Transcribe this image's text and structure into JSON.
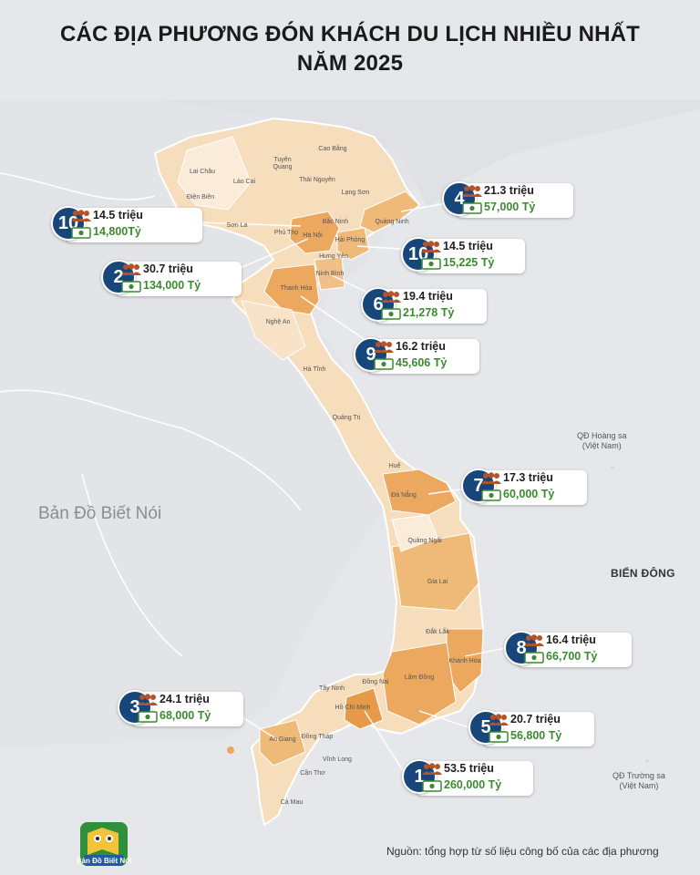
{
  "title": {
    "line1": "CÁC ĐỊA PHƯƠNG ĐÓN KHÁCH DU LỊCH NHIỀU NHẤT",
    "line2": "NĂM 2025"
  },
  "map_labels": {
    "watermark": "Bản Đồ Biết Nói",
    "hoang_sa": "QĐ Hoàng sa\n(Việt Nam)",
    "truong_sa": "QĐ Trường sa\n(Việt Nam)",
    "bien_dong": "BIỂN ĐÔNG",
    "source": "Nguồn: tổng hợp từ số liệu công bố của các địa phương",
    "logo_text": "Bản Đồ Biết Nói"
  },
  "provinces": [
    "Lai Châu",
    "Điện Biên",
    "Lào Cai",
    "Sơn La",
    "Tuyên Quang",
    "Cao Bằng",
    "Thái Nguyên",
    "Lạng Sơn",
    "Phú Thọ",
    "Hà Nội",
    "Bắc Ninh",
    "Quảng Ninh",
    "Hải Phòng",
    "Hưng Yên",
    "Ninh Bình",
    "Thanh Hóa",
    "Nghệ An",
    "Hà Tĩnh",
    "Quảng Trị",
    "Huế",
    "Đà Nẵng",
    "Quảng Ngãi",
    "Gia Lai",
    "Đắk Lắk",
    "Khánh Hòa",
    "Lâm Đồng",
    "Đồng Nai",
    "Tây Ninh",
    "Hồ Chí Minh",
    "An Giang",
    "Đồng Tháp",
    "Vĩnh Long",
    "Cần Thơ",
    "Cà Mau"
  ],
  "rankings": [
    {
      "rank": "10",
      "visitors": "14.5 triệu",
      "revenue": "14,800Tỷ"
    },
    {
      "rank": "4",
      "visitors": "21.3 triệu",
      "revenue": "57,000 Tỷ"
    },
    {
      "rank": "10",
      "visitors": "14.5 triệu",
      "revenue": "15,225 Tỷ"
    },
    {
      "rank": "2",
      "visitors": "30.7 triệu",
      "revenue": "134,000 Tỷ"
    },
    {
      "rank": "6",
      "visitors": "19.4 triệu",
      "revenue": "21,278 Tỷ"
    },
    {
      "rank": "9",
      "visitors": "16.2 triệu",
      "revenue": "45,606 Tỷ"
    },
    {
      "rank": "7",
      "visitors": "17.3 triệu",
      "revenue": "60,000 Tỷ"
    },
    {
      "rank": "8",
      "visitors": "16.4 triệu",
      "revenue": "66,700 Tỷ"
    },
    {
      "rank": "3",
      "visitors": "24.1 triệu",
      "revenue": "68,000 Tỷ"
    },
    {
      "rank": "5",
      "visitors": "20.7 triệu",
      "revenue": "56,800 Tỷ"
    },
    {
      "rank": "1",
      "visitors": "53.5 triệu",
      "revenue": "260,000 Tỷ"
    }
  ],
  "colors": {
    "accent": "#17467a",
    "revenue_text": "#3c8a2e",
    "land": "#f6ddbc",
    "highlight": "#eda860",
    "sea": "#e6e7ea"
  },
  "icons": {
    "visitors": "people-group-icon",
    "revenue": "money-icon"
  }
}
